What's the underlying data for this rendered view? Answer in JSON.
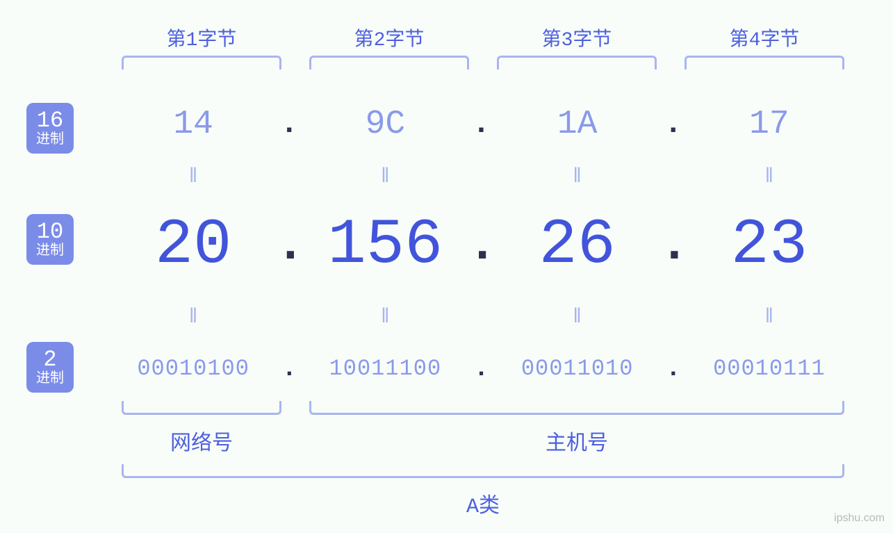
{
  "type": "infographic",
  "description": "IP address representation in hexadecimal, decimal, and binary",
  "background_color": "#f8fdf9",
  "colors": {
    "badge_bg": "#7b8ce8",
    "badge_text": "#ffffff",
    "label": "#4d5fe0",
    "bracket": "#a9b5f0",
    "hex_value": "#8a99ea",
    "dec_value": "#4254db",
    "bin_value": "#8a99ea",
    "dot": "#2d3150",
    "equals": "#a9b5f0",
    "watermark": "#b9b9b9"
  },
  "fontsizes": {
    "badge_num": 32,
    "badge_label": 20,
    "byte_label": 28,
    "hex": 48,
    "dec": 92,
    "bin": 32,
    "equals": 30,
    "bottom_label": 30,
    "watermark": 16
  },
  "byte_headers": [
    "第1字节",
    "第2字节",
    "第3字节",
    "第4字节"
  ],
  "badges": {
    "hex": {
      "num": "16",
      "label": "进制"
    },
    "dec": {
      "num": "10",
      "label": "进制"
    },
    "bin": {
      "num": "2",
      "label": "进制"
    }
  },
  "octets": [
    {
      "hex": "14",
      "dec": "20",
      "bin": "00010100"
    },
    {
      "hex": "9C",
      "dec": "156",
      "bin": "10011100"
    },
    {
      "hex": "1A",
      "dec": "26",
      "bin": "00011010"
    },
    {
      "hex": "17",
      "dec": "23",
      "bin": "00010111"
    }
  ],
  "separator": ".",
  "equals_glyph": "‖",
  "structure_labels": {
    "network": "网络号",
    "host": "主机号",
    "class": "A类"
  },
  "structure_spans": {
    "network_octets": [
      0
    ],
    "host_octets": [
      1,
      2,
      3
    ]
  },
  "watermark": "ipshu.com"
}
